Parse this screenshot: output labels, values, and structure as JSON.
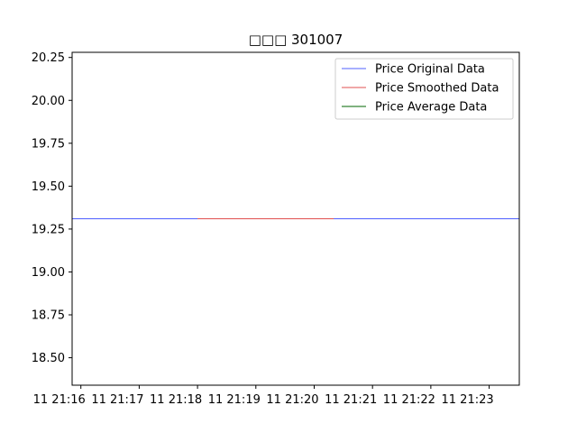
{
  "chart_data": {
    "type": "line",
    "title": "□□□  301007",
    "xlabel": "",
    "ylabel": "",
    "ylim": [
      18.34,
      20.28
    ],
    "yticks": [
      18.5,
      18.75,
      19.0,
      19.25,
      19.5,
      19.75,
      20.0,
      20.25
    ],
    "ytick_labels": [
      "18.50",
      "18.75",
      "19.00",
      "19.25",
      "19.50",
      "19.75",
      "20.00",
      "20.25"
    ],
    "xlim": [
      "21:15:51",
      "21:23:31"
    ],
    "xticks": [
      "21:16",
      "21:17",
      "21:18",
      "21:19",
      "21:20",
      "21:21",
      "21:22",
      "21:23"
    ],
    "xtick_labels": [
      "11 21:16",
      "11 21:17",
      "11 21:18",
      "11 21:19",
      "11 21:20",
      "11 21:21",
      "11 21:22",
      "11 21:23"
    ],
    "legend_position": "top-right",
    "grid": false,
    "series": [
      {
        "name": "Price Original Data",
        "color": "#4f5fff",
        "x": [
          "21:15:51",
          "21:23:31"
        ],
        "y": [
          19.31,
          19.31
        ]
      },
      {
        "name": "Price Smoothed Data",
        "color": "#e05050",
        "x": [
          "21:18:00",
          "21:20:20"
        ],
        "y": [
          19.31,
          19.31
        ]
      },
      {
        "name": "Price Average Data",
        "color": "#006400",
        "x": [],
        "y": []
      }
    ]
  }
}
